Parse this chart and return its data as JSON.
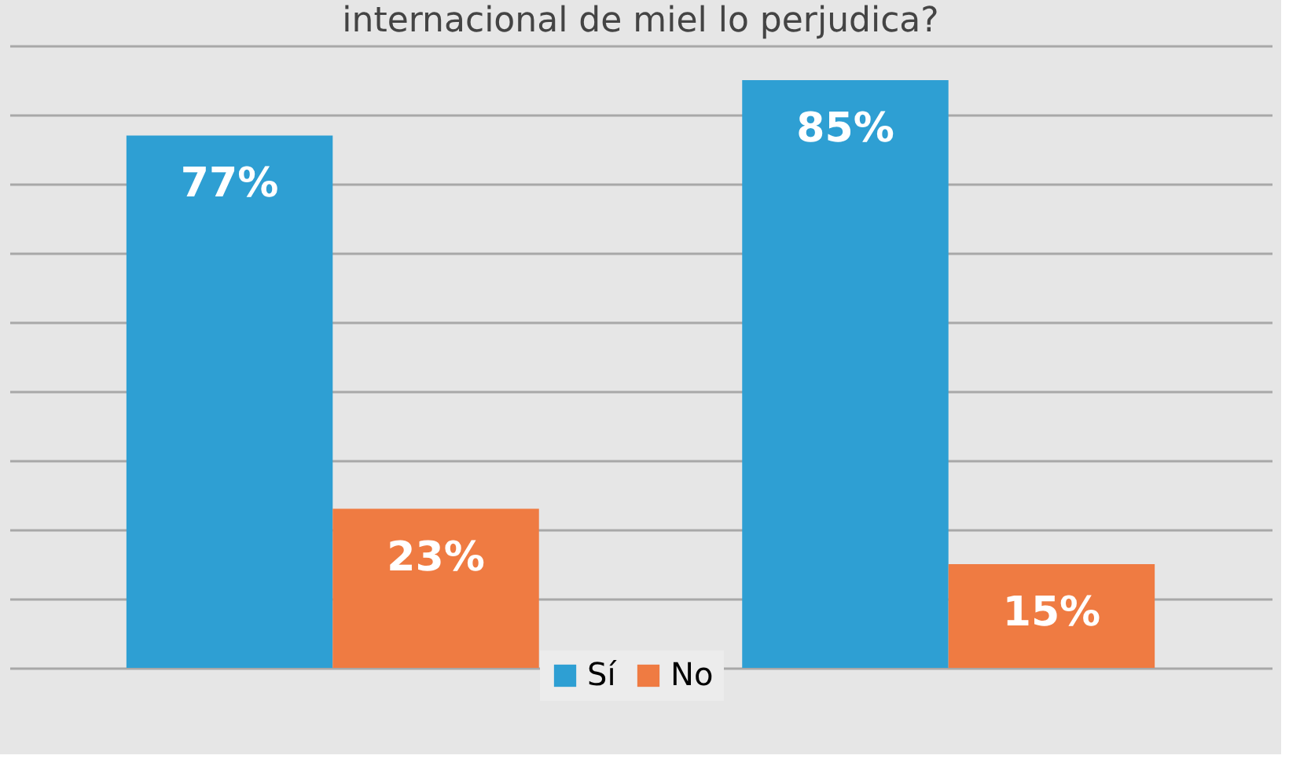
{
  "chart_data": {
    "type": "bar",
    "title": "internacional de miel lo perjudica?",
    "categories": [
      null,
      null
    ],
    "series": [
      {
        "name": "Sí",
        "color": "#2e9fd3",
        "values": [
          77,
          85
        ],
        "value_labels": [
          "77%",
          "85%"
        ]
      },
      {
        "name": "No",
        "color": "#ef7b42",
        "values": [
          23,
          15
        ],
        "value_labels": [
          "23%",
          "15%"
        ]
      }
    ],
    "grid": "y",
    "legend": "bottom",
    "tick_labels": false
  }
}
